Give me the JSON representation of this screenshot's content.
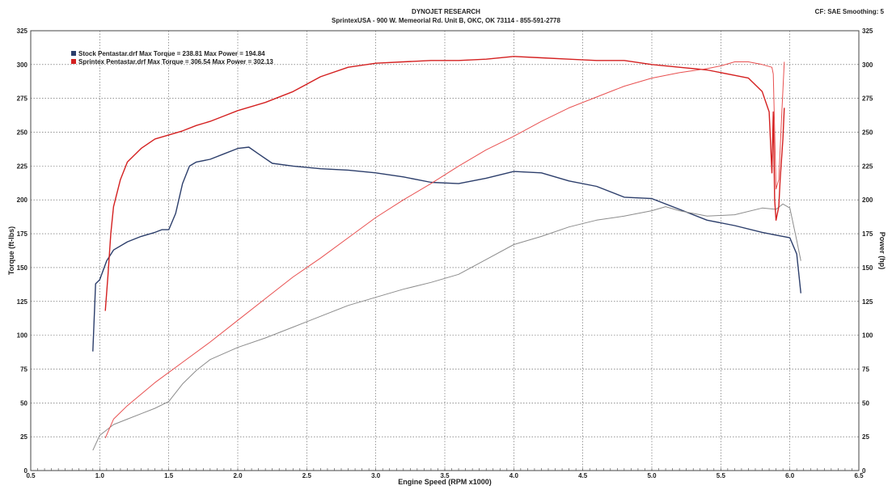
{
  "header": {
    "title": "DYNOJET RESEARCH",
    "subtitle": "SprintexUSA - 900 W. Memeorial Rd. Unit B, OKC, OK 73114 - 855-591-2778",
    "settings": "CF: SAE  Smoothing: 5"
  },
  "chart_data": {
    "type": "line",
    "xlabel": "Engine Speed (RPM x1000)",
    "ylabel": "Torque (ft-lbs)",
    "y2label": "Power (hp)",
    "xlim": [
      0.5,
      6.5
    ],
    "ylim": [
      0,
      325
    ],
    "y2lim": [
      0,
      325
    ],
    "x_ticks": [
      "0.5",
      "1.0",
      "1.5",
      "2.0",
      "2.5",
      "3.0",
      "3.5",
      "4.0",
      "4.5",
      "5.0",
      "5.5",
      "6.0",
      "6.5"
    ],
    "y_ticks": [
      "0",
      "25",
      "50",
      "75",
      "100",
      "125",
      "150",
      "175",
      "200",
      "225",
      "250",
      "275",
      "300",
      "325"
    ],
    "grid": true,
    "legend_position": "top-left",
    "legend": [
      "Stock Pentastar.drf Max Torque = 238.81    Max Power = 194.84",
      "Sprintex Pentastar.drf Max Torque = 306.54    Max Power = 302.13"
    ],
    "colors": {
      "stock": "#2c3e6b",
      "sprintex": "#d42020",
      "stock_power": "#8c8c8c",
      "sprintex_power": "#e85050"
    },
    "series": [
      {
        "name": "Stock Pentastar.drf",
        "measure": "torque",
        "x": [
          0.95,
          0.97,
          1.0,
          1.05,
          1.1,
          1.2,
          1.3,
          1.4,
          1.45,
          1.5,
          1.55,
          1.6,
          1.65,
          1.7,
          1.8,
          1.9,
          2.0,
          2.08,
          2.15,
          2.25,
          2.4,
          2.6,
          2.8,
          3.0,
          3.2,
          3.4,
          3.6,
          3.8,
          4.0,
          4.2,
          4.4,
          4.6,
          4.8,
          5.0,
          5.2,
          5.4,
          5.6,
          5.8,
          5.9,
          6.0,
          6.05,
          6.08
        ],
        "y": [
          88,
          138,
          141,
          155,
          163,
          169,
          173,
          176,
          178,
          178,
          190,
          212,
          225,
          228,
          230,
          234,
          238,
          239,
          234,
          227,
          225,
          223,
          222,
          220,
          217,
          213,
          212,
          216,
          221,
          220,
          214,
          210,
          202,
          201,
          193,
          185,
          181,
          176,
          174,
          172,
          160,
          131
        ]
      },
      {
        "name": "Stock Pentastar.drf",
        "measure": "power",
        "x": [
          0.95,
          1.0,
          1.1,
          1.2,
          1.3,
          1.4,
          1.5,
          1.6,
          1.7,
          1.8,
          2.0,
          2.2,
          2.4,
          2.6,
          2.8,
          3.0,
          3.2,
          3.4,
          3.6,
          3.8,
          4.0,
          4.2,
          4.4,
          4.6,
          4.8,
          5.0,
          5.1,
          5.2,
          5.4,
          5.6,
          5.8,
          5.9,
          5.95,
          6.0,
          6.05,
          6.08
        ],
        "y": [
          15,
          26,
          34,
          38,
          42,
          46,
          51,
          64,
          74,
          82,
          91,
          98,
          106,
          114,
          122,
          128,
          134,
          139,
          145,
          156,
          167,
          173,
          180,
          185,
          188,
          192,
          195,
          192,
          188,
          189,
          194,
          193,
          197,
          194,
          170,
          155
        ]
      },
      {
        "name": "Sprintex Pentastar.drf",
        "measure": "torque",
        "x": [
          1.04,
          1.06,
          1.08,
          1.1,
          1.15,
          1.2,
          1.3,
          1.4,
          1.5,
          1.6,
          1.7,
          1.8,
          1.9,
          2.0,
          2.2,
          2.4,
          2.6,
          2.8,
          3.0,
          3.2,
          3.4,
          3.6,
          3.8,
          4.0,
          4.2,
          4.4,
          4.6,
          4.8,
          5.0,
          5.2,
          5.4,
          5.6,
          5.7,
          5.8,
          5.85,
          5.87,
          5.88,
          5.89,
          5.9,
          5.92,
          5.93,
          5.95,
          5.96
        ],
        "y": [
          118,
          145,
          175,
          195,
          215,
          228,
          238,
          245,
          248,
          251,
          255,
          258,
          262,
          266,
          272,
          280,
          291,
          298,
          301,
          302,
          303,
          303,
          304,
          306,
          305,
          304,
          303,
          303,
          300,
          298,
          296,
          292,
          290,
          280,
          265,
          220,
          265,
          200,
          185,
          195,
          215,
          245,
          268
        ]
      },
      {
        "name": "Sprintex Pentastar.drf",
        "measure": "power",
        "x": [
          1.04,
          1.1,
          1.2,
          1.4,
          1.6,
          1.8,
          2.0,
          2.2,
          2.4,
          2.6,
          2.8,
          3.0,
          3.2,
          3.4,
          3.6,
          3.8,
          4.0,
          4.2,
          4.4,
          4.6,
          4.8,
          5.0,
          5.2,
          5.4,
          5.5,
          5.6,
          5.7,
          5.8,
          5.87,
          5.88,
          5.9,
          5.92,
          5.94,
          5.96
        ],
        "y": [
          24,
          38,
          48,
          65,
          80,
          95,
          111,
          127,
          143,
          157,
          172,
          187,
          200,
          212,
          225,
          237,
          247,
          258,
          268,
          276,
          284,
          290,
          294,
          297,
          299,
          302,
          302,
          300,
          298,
          293,
          208,
          215,
          260,
          302
        ]
      }
    ]
  }
}
